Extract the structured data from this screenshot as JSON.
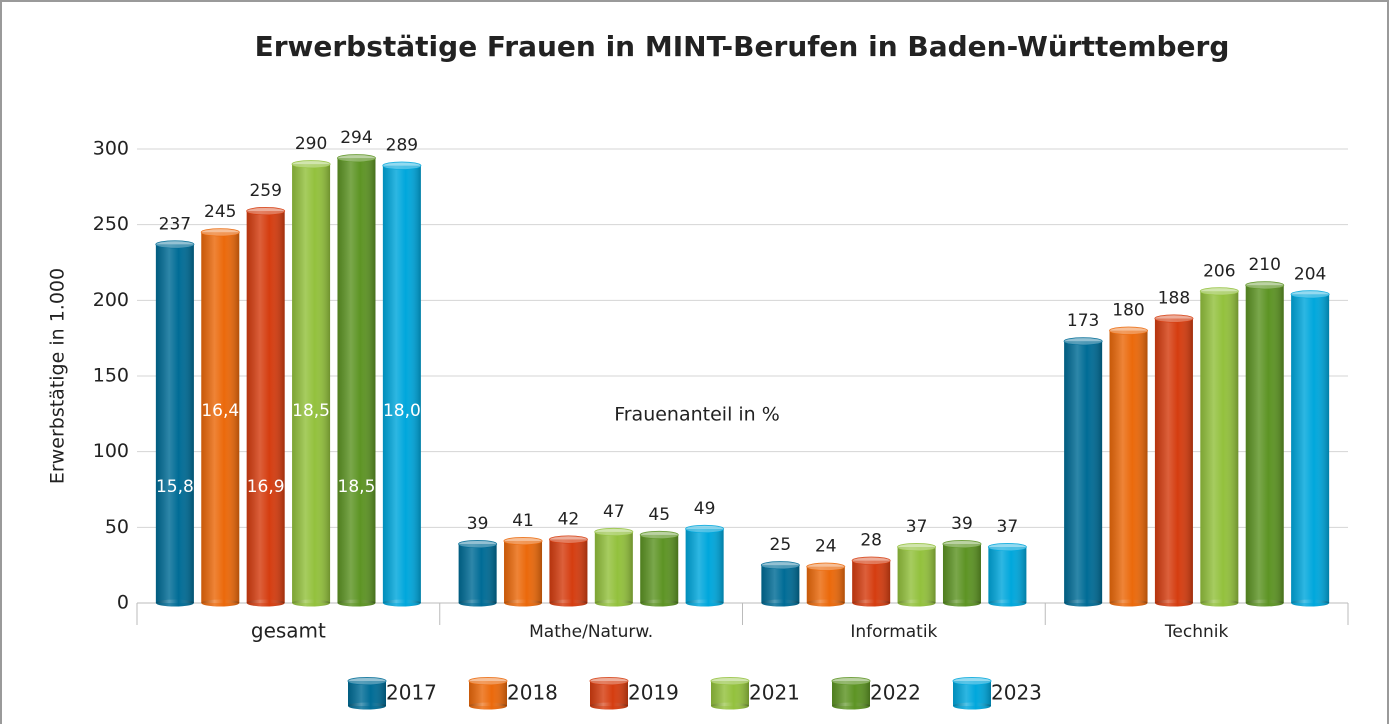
{
  "chart_data": {
    "type": "bar",
    "title": "Erwerbstätige Frauen in MINT-Berufen in Baden-Württemberg",
    "y_label": "Erwerbstätige in 1.000",
    "annotation": "Frauenanteil in %",
    "categories": [
      "gesamt",
      "Mathe/Naturw.",
      "Informatik",
      "Technik"
    ],
    "series": [
      {
        "name": "2017",
        "color": "#006c96",
        "values": [
          237,
          39,
          25,
          173
        ],
        "share_label": "15,8"
      },
      {
        "name": "2018",
        "color": "#eb690b",
        "values": [
          245,
          41,
          24,
          180
        ],
        "share_label": "16,4"
      },
      {
        "name": "2019",
        "color": "#d53d10",
        "values": [
          259,
          42,
          28,
          188
        ],
        "share_label": "16,9"
      },
      {
        "name": "2021",
        "color": "#93c13d",
        "values": [
          290,
          47,
          37,
          206
        ],
        "share_label": "18,5"
      },
      {
        "name": "2022",
        "color": "#5d9424",
        "values": [
          294,
          45,
          39,
          210
        ],
        "share_label": "18,5"
      },
      {
        "name": "2023",
        "color": "#00a7dc",
        "values": [
          289,
          49,
          37,
          204
        ],
        "share_label": "18,0"
      }
    ],
    "ylim": [
      0,
      300
    ],
    "yticks": [
      0,
      50,
      100,
      150,
      200,
      250,
      300
    ],
    "grid": true,
    "legend": "bottom"
  }
}
